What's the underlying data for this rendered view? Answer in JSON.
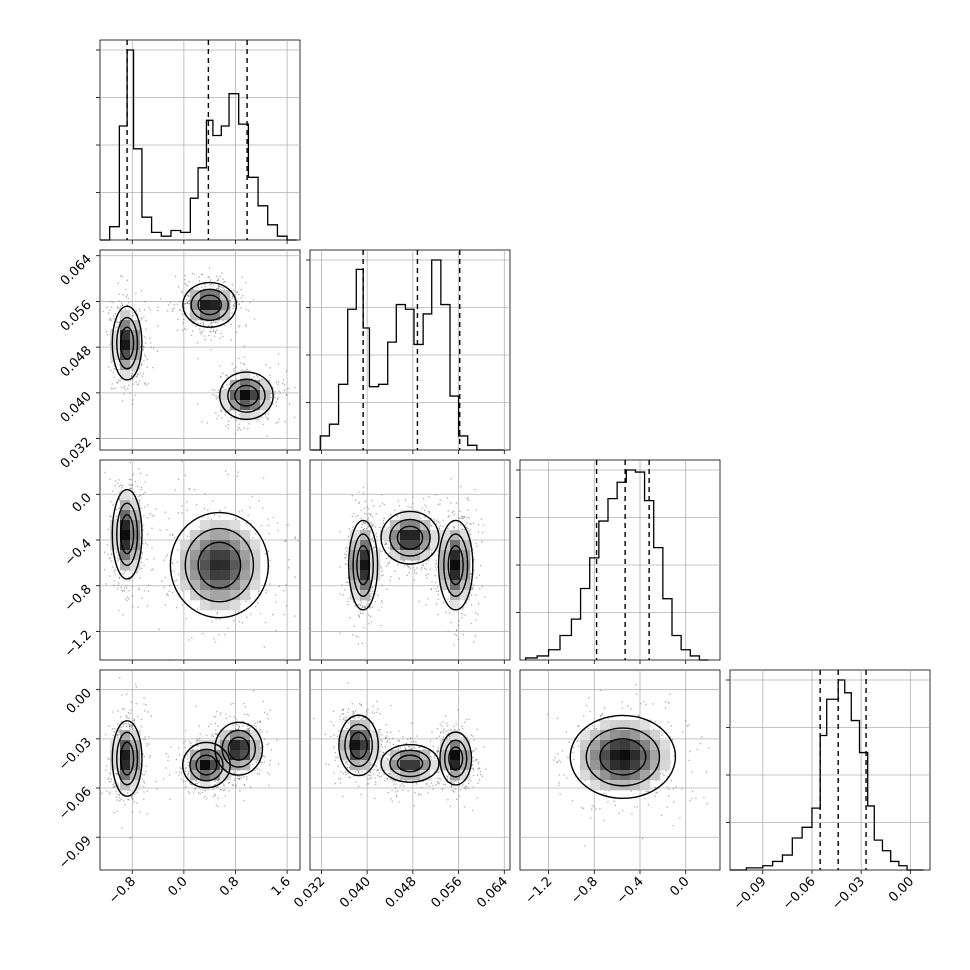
{
  "chart_data": {
    "type": "corner",
    "parameters": [
      {
        "range": [
          -1.3,
          1.8
        ],
        "ticks": [
          -0.8,
          0.0,
          0.8,
          1.6
        ],
        "tick_labels": [
          "−0.8",
          "0.0",
          "0.8",
          "1.6"
        ],
        "quantiles": [
          -0.88,
          0.38,
          0.98
        ],
        "hist_edges": [
          -1.3,
          -1.15,
          -1.0,
          -0.88,
          -0.78,
          -0.65,
          -0.5,
          -0.35,
          -0.2,
          -0.05,
          0.1,
          0.22,
          0.35,
          0.45,
          0.58,
          0.7,
          0.85,
          1.0,
          1.15,
          1.3,
          1.45,
          1.6,
          1.75
        ],
        "hist_counts": [
          0.0,
          0.07,
          0.6,
          1.0,
          0.48,
          0.12,
          0.04,
          0.02,
          0.05,
          0.04,
          0.22,
          0.38,
          0.63,
          0.55,
          0.6,
          0.77,
          0.61,
          0.33,
          0.18,
          0.08,
          0.02,
          0.0
        ]
      },
      {
        "range": [
          0.03,
          0.065
        ],
        "ticks": [
          0.032,
          0.04,
          0.048,
          0.056,
          0.064
        ],
        "tick_labels": [
          "0.032",
          "0.040",
          "0.048",
          "0.056",
          "0.064"
        ],
        "quantiles": [
          0.0393,
          0.0488,
          0.0562
        ],
        "hist_edges": [
          0.0302,
          0.0318,
          0.0334,
          0.035,
          0.0366,
          0.0381,
          0.0393,
          0.0404,
          0.042,
          0.0436,
          0.0451,
          0.0467,
          0.0482,
          0.0498,
          0.0513,
          0.0529,
          0.0545,
          0.056,
          0.0576,
          0.0592,
          0.0607,
          0.0623,
          0.0639
        ],
        "hist_counts": [
          0.0,
          0.06,
          0.11,
          0.28,
          0.6,
          0.77,
          0.52,
          0.27,
          0.28,
          0.46,
          0.62,
          0.6,
          0.45,
          0.58,
          0.81,
          0.62,
          0.23,
          0.06,
          0.02,
          0.0,
          0.0,
          0.0
        ]
      },
      {
        "range": [
          -1.45,
          0.3
        ],
        "ticks": [
          -1.2,
          -0.8,
          -0.4,
          0.0
        ],
        "tick_labels": [
          "−1.2",
          "−0.8",
          "−0.4",
          "0.0"
        ],
        "quantiles": [
          -0.78,
          -0.53,
          -0.32
        ],
        "hist_edges": [
          -1.4,
          -1.3,
          -1.2,
          -1.1,
          -1.0,
          -0.92,
          -0.84,
          -0.76,
          -0.68,
          -0.6,
          -0.52,
          -0.44,
          -0.36,
          -0.28,
          -0.2,
          -0.12,
          -0.04,
          0.04,
          0.12,
          0.2
        ],
        "hist_counts": [
          0.01,
          0.02,
          0.05,
          0.12,
          0.2,
          0.35,
          0.5,
          0.68,
          0.79,
          0.87,
          0.93,
          0.92,
          0.78,
          0.55,
          0.3,
          0.12,
          0.05,
          0.02,
          0.0
        ]
      },
      {
        "range": [
          -0.11,
          0.012
        ],
        "ticks": [
          -0.09,
          -0.06,
          -0.03,
          0.0
        ],
        "tick_labels": [
          "−0.09",
          "−0.06",
          "−0.03",
          "0.00"
        ],
        "quantiles": [
          -0.055,
          -0.044,
          -0.027
        ],
        "hist_edges": [
          -0.11,
          -0.1,
          -0.09,
          -0.084,
          -0.078,
          -0.072,
          -0.066,
          -0.06,
          -0.055,
          -0.051,
          -0.048,
          -0.044,
          -0.04,
          -0.036,
          -0.031,
          -0.026,
          -0.022,
          -0.017,
          -0.012,
          -0.007,
          -0.002,
          0.003,
          0.008
        ],
        "hist_counts": [
          0.0,
          0.01,
          0.02,
          0.04,
          0.07,
          0.15,
          0.2,
          0.29,
          0.63,
          0.8,
          0.8,
          0.89,
          0.83,
          0.7,
          0.55,
          0.3,
          0.14,
          0.09,
          0.04,
          0.02,
          0.0,
          0.0
        ]
      }
    ],
    "joint_blobs": [
      {
        "row": 1,
        "col": 0,
        "clusters": [
          {
            "cx": -0.88,
            "cy": 0.0487,
            "sx": 0.1,
            "sy": 0.0028,
            "w": 1.0
          },
          {
            "cx": 0.4,
            "cy": 0.0554,
            "sx": 0.18,
            "sy": 0.0017,
            "w": 1.0
          },
          {
            "cx": 0.97,
            "cy": 0.0395,
            "sx": 0.18,
            "sy": 0.0018,
            "w": 1.0
          }
        ]
      },
      {
        "row": 2,
        "col": 0,
        "clusters": [
          {
            "cx": -0.88,
            "cy": -0.35,
            "sx": 0.1,
            "sy": 0.17,
            "w": 1.0
          },
          {
            "cx": 0.55,
            "cy": -0.62,
            "sx": 0.33,
            "sy": 0.2,
            "w": 0.85
          }
        ]
      },
      {
        "row": 2,
        "col": 1,
        "clusters": [
          {
            "cx": 0.0393,
            "cy": -0.62,
            "sx": 0.0011,
            "sy": 0.17,
            "w": 1.0
          },
          {
            "cx": 0.0475,
            "cy": -0.38,
            "sx": 0.0022,
            "sy": 0.1,
            "w": 1.0
          },
          {
            "cx": 0.0555,
            "cy": -0.62,
            "sx": 0.0013,
            "sy": 0.17,
            "w": 1.0
          }
        ]
      },
      {
        "row": 2,
        "col": 2,
        "clusters": []
      },
      {
        "row": 3,
        "col": 0,
        "clusters": [
          {
            "cx": -0.88,
            "cy": -0.042,
            "sx": 0.1,
            "sy": 0.01,
            "w": 1.0
          },
          {
            "cx": 0.35,
            "cy": -0.046,
            "sx": 0.16,
            "sy": 0.006,
            "w": 1.0
          },
          {
            "cx": 0.85,
            "cy": -0.036,
            "sx": 0.16,
            "sy": 0.007,
            "w": 1.0
          }
        ]
      },
      {
        "row": 3,
        "col": 1,
        "clusters": [
          {
            "cx": 0.0385,
            "cy": -0.034,
            "sx": 0.0015,
            "sy": 0.008,
            "w": 1.0
          },
          {
            "cx": 0.0475,
            "cy": -0.045,
            "sx": 0.0022,
            "sy": 0.005,
            "w": 0.85
          },
          {
            "cx": 0.0555,
            "cy": -0.042,
            "sx": 0.0012,
            "sy": 0.007,
            "w": 1.0
          }
        ]
      },
      {
        "row": 3,
        "col": 2,
        "clusters": [
          {
            "cx": -0.55,
            "cy": -0.041,
            "sx": 0.2,
            "sy": 0.011,
            "w": 1.0
          }
        ]
      }
    ]
  }
}
